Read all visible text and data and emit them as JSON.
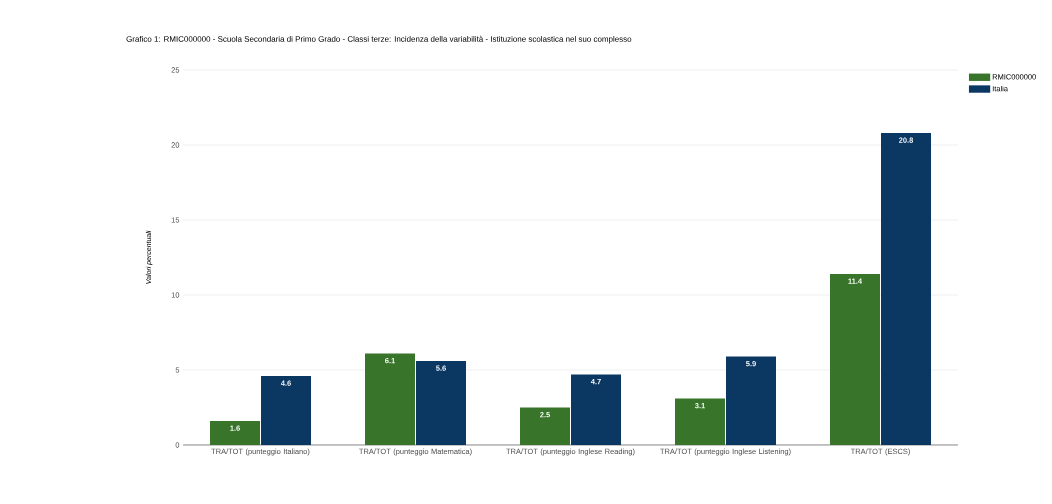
{
  "chart_data": {
    "type": "bar",
    "title": "Grafico 1: RMIC000000 - Scuola Secondaria di Primo Grado - Classi terze: Incidenza della variabilità - Istituzione scolastica nel suo complesso",
    "ylabel": "Valori percentuali",
    "categories": [
      "TRA/TOT (punteggio Italiano)",
      "TRA/TOT (punteggio Matematica)",
      "TRA/TOT (punteggio Inglese Reading)",
      "TRA/TOT (punteggio Inglese Listening)",
      "TRA/TOT (ESCS)"
    ],
    "series": [
      {
        "name": "RMIC000000",
        "color": "#38752a",
        "values": [
          1.6,
          6.1,
          2.5,
          3.1,
          11.4
        ]
      },
      {
        "name": "Italia",
        "color": "#0b3763",
        "values": [
          4.6,
          5.6,
          4.7,
          5.9,
          20.8
        ]
      }
    ],
    "ylim": [
      0,
      25
    ],
    "yticks": [
      0,
      5,
      10,
      15,
      20,
      25
    ],
    "grid": "y",
    "legend": "top right",
    "data_labels": true
  }
}
